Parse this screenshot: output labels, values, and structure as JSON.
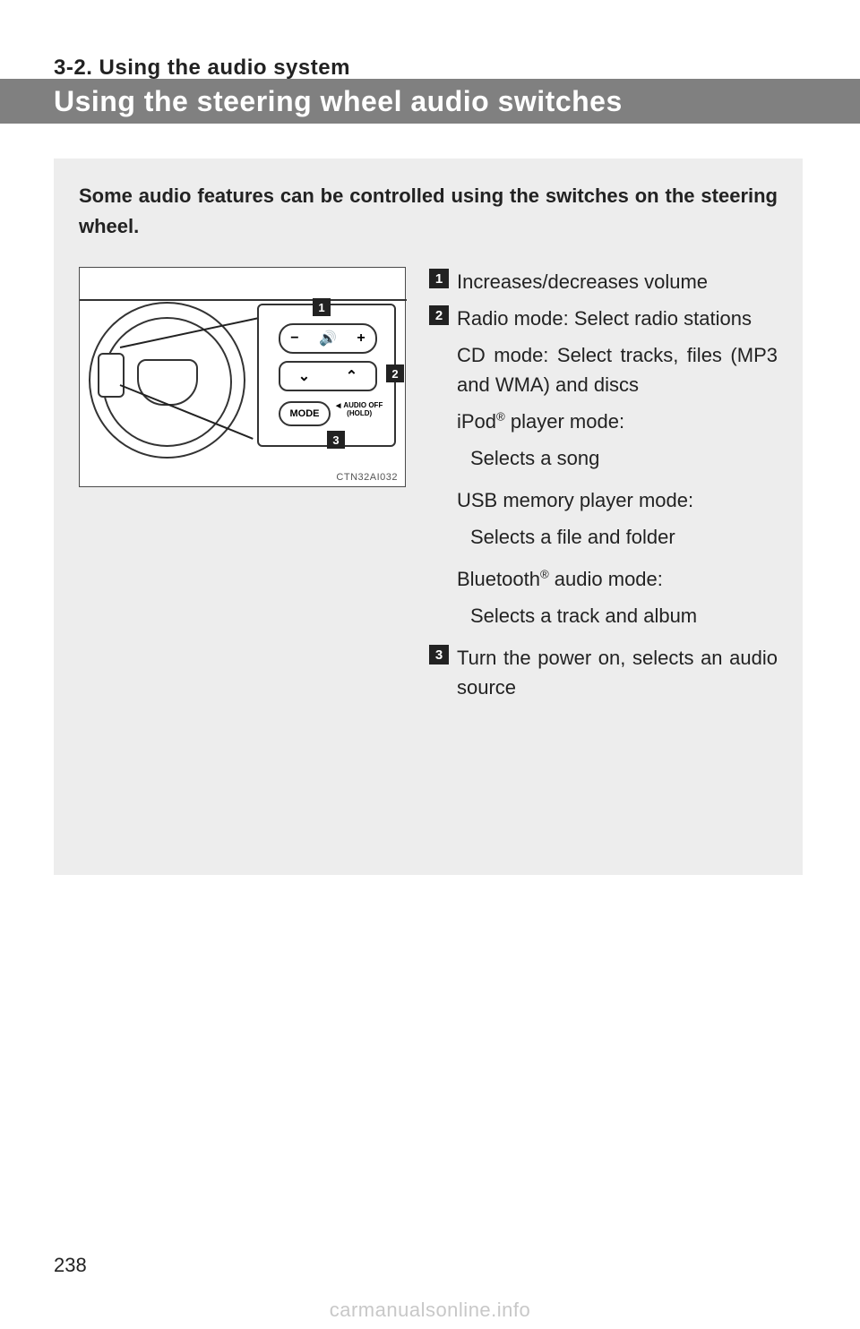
{
  "section_label": "3-2. Using the audio system",
  "banner_title": "Using the steering wheel audio switches",
  "intro": "Some audio features can be controlled using the switches on the steering wheel.",
  "figure": {
    "caption": "CTN32AI032",
    "btn_top_minus": "−",
    "btn_top_speaker": "🔊",
    "btn_top_plus": "+",
    "btn_mid_down": "⌄",
    "btn_mid_up": "⌃",
    "btn_mode": "MODE",
    "audio_off_l1": "AUDIO OFF",
    "audio_off_l2": "(HOLD)",
    "callouts": {
      "c1": "1",
      "c2": "2",
      "c3": "3"
    }
  },
  "list": {
    "i1": {
      "num": "1",
      "text": "Increases/decreases vol­ume"
    },
    "i2": {
      "num": "2",
      "line1": "Radio mode: Select radio stations",
      "line2": "CD mode: Select tracks, files (MP3 and WMA) and discs",
      "ipod_head_a": "iPod",
      "ipod_head_sup": "®",
      "ipod_head_b": " player mode:",
      "ipod_body": "Selects a song",
      "usb_head": "USB memory player mode:",
      "usb_body": "Selects a file and folder",
      "bt_head_a": "Bluetooth",
      "bt_head_sup": "®",
      "bt_head_b": " audio mode:",
      "bt_body": "Selects a track and album"
    },
    "i3": {
      "num": "3",
      "text": "Turn the power on, selects an audio source"
    }
  },
  "page_number": "238",
  "watermark": "carmanualsonline.info",
  "colors": {
    "banner_bg": "#808080",
    "content_bg": "#ededed",
    "text": "#222222",
    "watermark": "#c8c8c8"
  }
}
